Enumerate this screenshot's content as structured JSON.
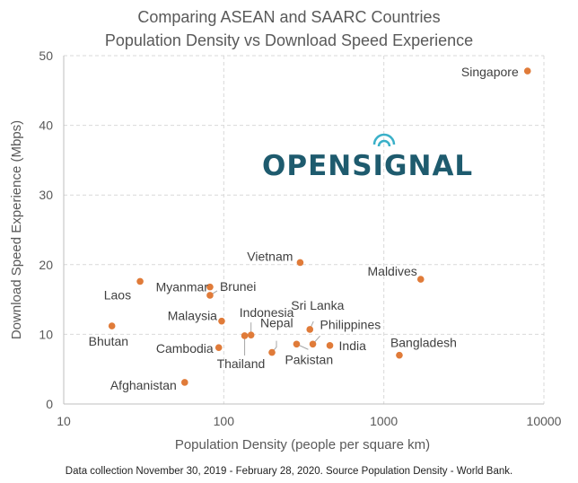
{
  "chart_data": {
    "type": "scatter",
    "title_line1": "Comparing ASEAN and SAARC Countries",
    "title_line2": "Population Density vs  Download Speed Experience",
    "xlabel": "Population Density (people per square km)",
    "ylabel": "Download Speed Experience (Mbps)",
    "x_scale": "log",
    "xlim": [
      10,
      10000
    ],
    "ylim": [
      0,
      50
    ],
    "x_ticks": [
      10,
      100,
      1000,
      10000
    ],
    "x_tick_labels": [
      "10",
      "100",
      "1000",
      "10000"
    ],
    "y_ticks": [
      0,
      10,
      20,
      30,
      40,
      50
    ],
    "y_tick_labels": [
      "0",
      "10",
      "20",
      "30",
      "40",
      "50"
    ],
    "grid": "dashed",
    "marker_color": "#e07b39",
    "points": [
      {
        "label": "Singapore",
        "x": 7900,
        "y": 47.8
      },
      {
        "label": "Maldives",
        "x": 1700,
        "y": 17.9
      },
      {
        "label": "Bangladesh",
        "x": 1250,
        "y": 7.0
      },
      {
        "label": "Vietnam",
        "x": 300,
        "y": 20.3
      },
      {
        "label": "Sri Lanka",
        "x": 345,
        "y": 10.7
      },
      {
        "label": "Philippines",
        "x": 360,
        "y": 8.6
      },
      {
        "label": "India",
        "x": 460,
        "y": 8.4
      },
      {
        "label": "Pakistan",
        "x": 285,
        "y": 8.6
      },
      {
        "label": "Nepal",
        "x": 200,
        "y": 7.4
      },
      {
        "label": "Thailand",
        "x": 135,
        "y": 9.8
      },
      {
        "label": "Indonesia",
        "x": 148,
        "y": 9.9
      },
      {
        "label": "Malaysia",
        "x": 97,
        "y": 11.9
      },
      {
        "label": "Cambodia",
        "x": 93,
        "y": 8.1
      },
      {
        "label": "Myanmar",
        "x": 82,
        "y": 16.8
      },
      {
        "label": "Brunei",
        "x": 82,
        "y": 15.6
      },
      {
        "label": "Laos",
        "x": 30,
        "y": 17.6
      },
      {
        "label": "Bhutan",
        "x": 20,
        "y": 11.2
      },
      {
        "label": "Afghanistan",
        "x": 57,
        "y": 3.1
      }
    ]
  },
  "logo": {
    "text": "OPENSIGNAL",
    "color": "#1e5b6e",
    "accent": "#3ab0c8"
  },
  "footnote": "Data collection November 30, 2019 - February 28, 2020. Source Population Density - World Bank."
}
